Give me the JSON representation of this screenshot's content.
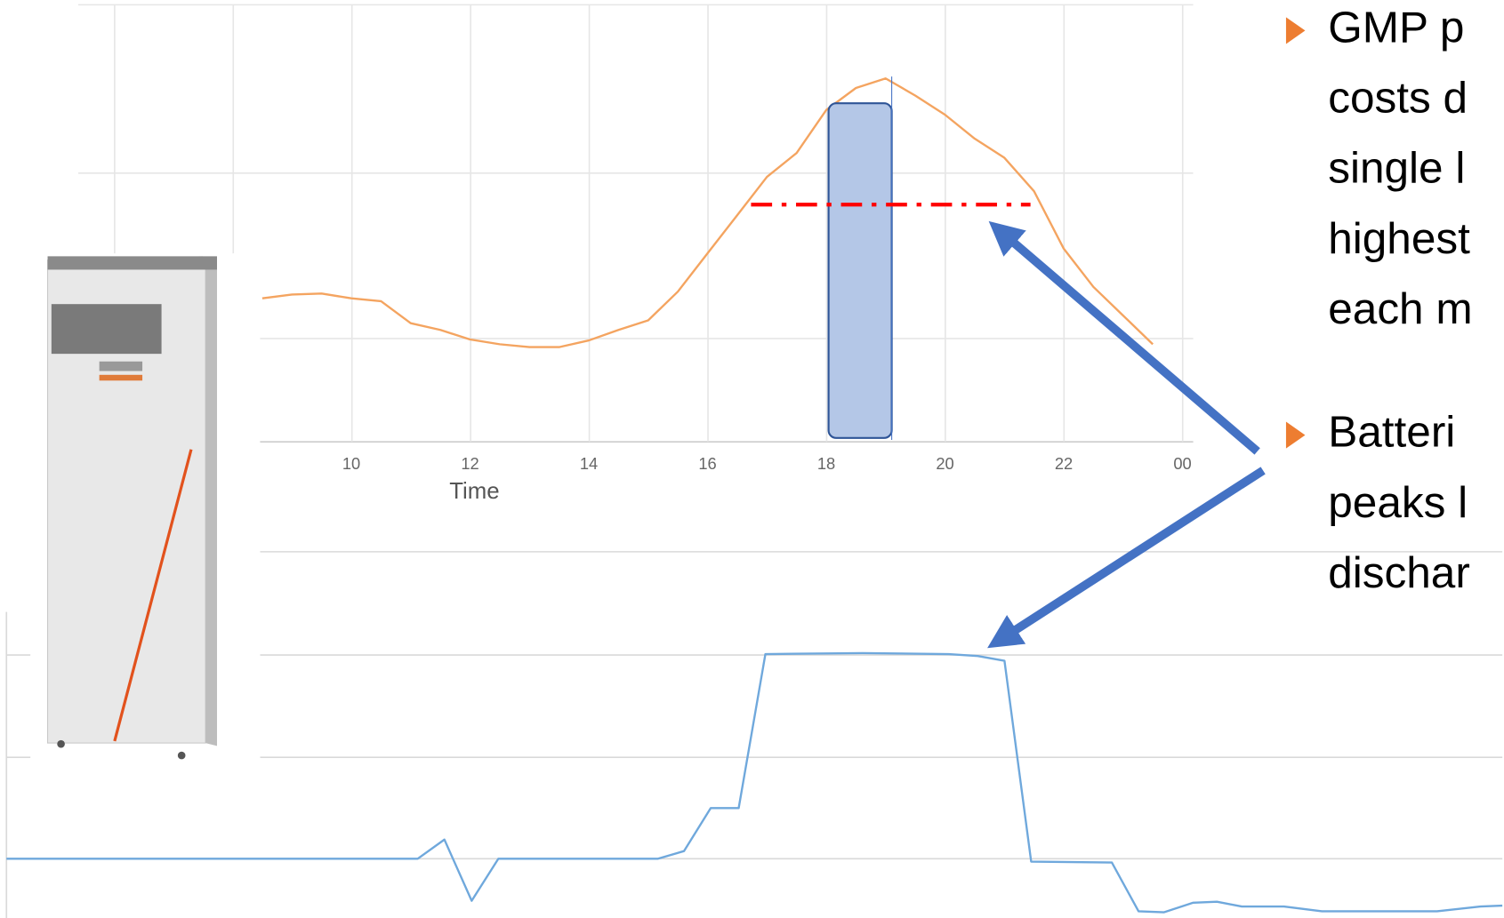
{
  "chart_data": [
    {
      "type": "line",
      "xlabel": "Time",
      "x": [
        8.5,
        9,
        9.5,
        10,
        10.5,
        11,
        11.5,
        12,
        12.5,
        13,
        13.5,
        14,
        14.5,
        15,
        15.5,
        16,
        16.5,
        17,
        17.5,
        18,
        18.5,
        19,
        19.5,
        20,
        20.5,
        21,
        21.5,
        22,
        22.5,
        23,
        23.5
      ],
      "values": [
        150,
        154,
        155,
        150,
        147,
        124,
        117,
        107,
        102,
        99,
        99,
        106,
        117,
        127,
        157,
        197,
        237,
        277,
        302,
        347,
        370,
        380,
        362,
        342,
        317,
        297,
        262,
        202,
        162,
        132,
        102
      ],
      "color": "#f4a460",
      "xlim": [
        5.4,
        24.1
      ],
      "ylim": [
        0,
        462
      ],
      "xticks": [
        10,
        12,
        14,
        16,
        18,
        20,
        22,
        {
          "value": 24,
          "label": "00"
        }
      ]
    },
    {
      "type": "line",
      "x": [
        4.18,
        11.11,
        11.56,
        12.02,
        12.47,
        15.16,
        15.6,
        16.05,
        16.52,
        16.97,
        18.61,
        20.06,
        20.55,
        21.0,
        21.45,
        22.81,
        23.26,
        23.69,
        24.18,
        24.58,
        25.0,
        25.71,
        26.35,
        28.29,
        29.02,
        29.39
      ],
      "values": [
        62,
        62,
        82,
        18,
        62,
        62,
        70,
        115,
        115,
        276,
        277,
        276,
        274,
        269,
        59,
        58,
        7,
        6,
        16,
        17,
        12,
        12,
        7,
        7,
        12,
        13
      ],
      "color": "#6fa8dc",
      "xlim": [
        4.18,
        29.39
      ],
      "ylim": [
        0,
        330
      ]
    }
  ],
  "text_box": {
    "bullets": [
      [
        "GMP p",
        "costs d",
        "single l",
        "highest",
        "each m"
      ],
      [
        "Batteri",
        "peaks l",
        "dischar"
      ]
    ]
  }
}
